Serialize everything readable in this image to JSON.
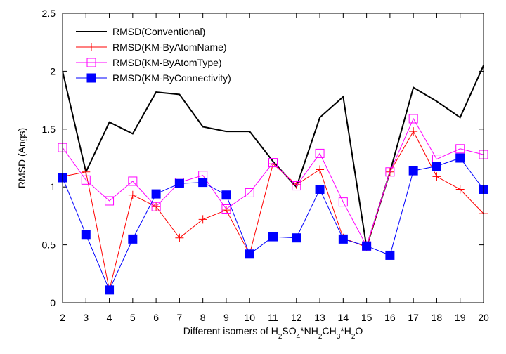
{
  "chart_data": {
    "type": "line",
    "title": "",
    "xlabel_parts": [
      {
        "t": "Different isomers of H",
        "s": "n"
      },
      {
        "t": "2",
        "s": "sub"
      },
      {
        "t": "SO",
        "s": "n"
      },
      {
        "t": "4",
        "s": "sub"
      },
      {
        "t": "*NH",
        "s": "n"
      },
      {
        "t": "2",
        "s": "sub"
      },
      {
        "t": "CH",
        "s": "n"
      },
      {
        "t": "3",
        "s": "sub"
      },
      {
        "t": "*H",
        "s": "n"
      },
      {
        "t": "2",
        "s": "sub"
      },
      {
        "t": "O",
        "s": "n"
      }
    ],
    "ylabel": "RMSD (Angs)",
    "xlim": [
      2,
      20
    ],
    "ylim": [
      0,
      2.5
    ],
    "x": [
      2,
      3,
      4,
      5,
      6,
      7,
      8,
      9,
      10,
      11,
      12,
      13,
      14,
      15,
      16,
      17,
      18,
      19,
      20
    ],
    "x_ticks": [
      "2",
      "3",
      "4",
      "5",
      "6",
      "7",
      "8",
      "9",
      "10",
      "11",
      "12",
      "13",
      "14",
      "15",
      "16",
      "17",
      "18",
      "19",
      "20"
    ],
    "y_ticks": [
      {
        "v": 0,
        "label": "0"
      },
      {
        "v": 0.5,
        "label": "0.5"
      },
      {
        "v": 1,
        "label": "1"
      },
      {
        "v": 1.5,
        "label": "1.5"
      },
      {
        "v": 2,
        "label": "2"
      },
      {
        "v": 2.5,
        "label": "2.5"
      }
    ],
    "grid": false,
    "legend_position": "top-left",
    "series": [
      {
        "name": "RMSD(Conventional)",
        "color": "#000000",
        "marker": "none",
        "line_width": 2,
        "values": [
          2.0,
          1.13,
          1.56,
          1.46,
          1.82,
          1.8,
          1.52,
          1.48,
          1.48,
          1.22,
          1.0,
          1.6,
          1.78,
          0.48,
          1.13,
          1.86,
          1.74,
          1.6,
          2.05
        ]
      },
      {
        "name": "RMSD(KM-ByAtomName)",
        "color": "#ff0000",
        "marker": "plus",
        "line_width": 1,
        "values": [
          1.09,
          1.13,
          0.11,
          0.93,
          0.83,
          0.56,
          0.72,
          0.8,
          0.42,
          1.2,
          1.02,
          1.15,
          0.56,
          0.48,
          1.13,
          1.48,
          1.09,
          0.98,
          0.77
        ]
      },
      {
        "name": "RMSD(KM-ByAtomType)",
        "color": "#ff00ff",
        "marker": "open-square",
        "line_width": 1,
        "values": [
          1.34,
          1.06,
          0.88,
          1.05,
          0.83,
          1.04,
          1.1,
          0.81,
          0.95,
          1.21,
          1.01,
          1.29,
          0.87,
          0.49,
          1.13,
          1.59,
          1.24,
          1.33,
          1.28
        ]
      },
      {
        "name": "RMSD(KM-ByConnectivity)",
        "color": "#0000ff",
        "marker": "filled-square",
        "line_width": 1,
        "values": [
          1.08,
          0.59,
          0.11,
          0.55,
          0.94,
          1.03,
          1.04,
          0.93,
          0.42,
          0.57,
          0.56,
          0.98,
          0.55,
          0.49,
          0.41,
          1.14,
          1.18,
          1.25,
          0.98
        ]
      }
    ]
  }
}
